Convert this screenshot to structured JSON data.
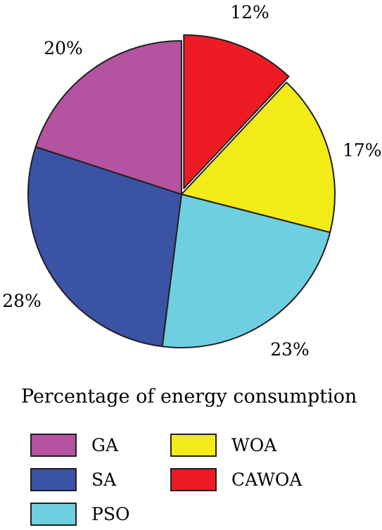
{
  "chart_data": {
    "type": "pie",
    "title": "Percentage of energy consumption",
    "slices": [
      {
        "label": "CAWOA",
        "value": 12,
        "display": "12%",
        "color": "#ed1c24",
        "exploded": true
      },
      {
        "label": "WOA",
        "value": 17,
        "display": "17%",
        "color": "#f3eb18",
        "exploded": false
      },
      {
        "label": "PSO",
        "value": 23,
        "display": "23%",
        "color": "#6dcfdf",
        "exploded": false
      },
      {
        "label": "SA",
        "value": 28,
        "display": "28%",
        "color": "#3a53a4",
        "exploded": false
      },
      {
        "label": "GA",
        "value": 20,
        "display": "20%",
        "color": "#b453a0",
        "exploded": false
      }
    ],
    "legend": {
      "placement": "bottom",
      "items": [
        {
          "label": "GA",
          "color": "#b453a0"
        },
        {
          "label": "WOA",
          "color": "#f3eb18"
        },
        {
          "label": "SA",
          "color": "#3a53a4"
        },
        {
          "label": "CAWOA",
          "color": "#ed1c24"
        },
        {
          "label": "PSO",
          "color": "#6dcfdf"
        }
      ]
    }
  }
}
